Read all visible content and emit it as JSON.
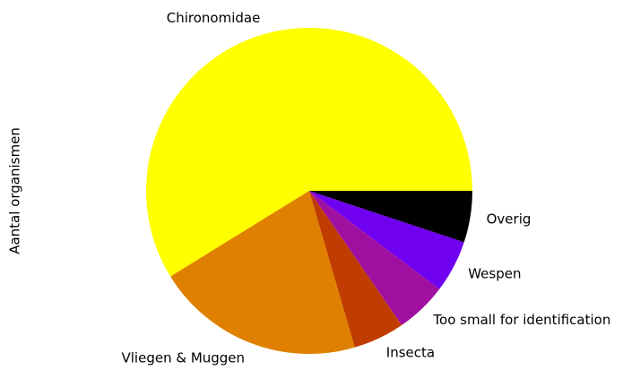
{
  "chart_data": {
    "type": "pie",
    "ylabel": "Aantal organismen",
    "categories": [
      "Chironomidae",
      "Vliegen & Muggen",
      "Insecta",
      "Too small for identification",
      "Wespen",
      "Overig"
    ],
    "values": [
      58.8,
      20.7,
      5.1,
      5.1,
      5.2,
      5.1
    ],
    "colors": [
      "#ffff00",
      "#e08000",
      "#c03c00",
      "#a010a0",
      "#7000f0",
      "#000000"
    ],
    "startangle": 0,
    "counterclock": true
  }
}
